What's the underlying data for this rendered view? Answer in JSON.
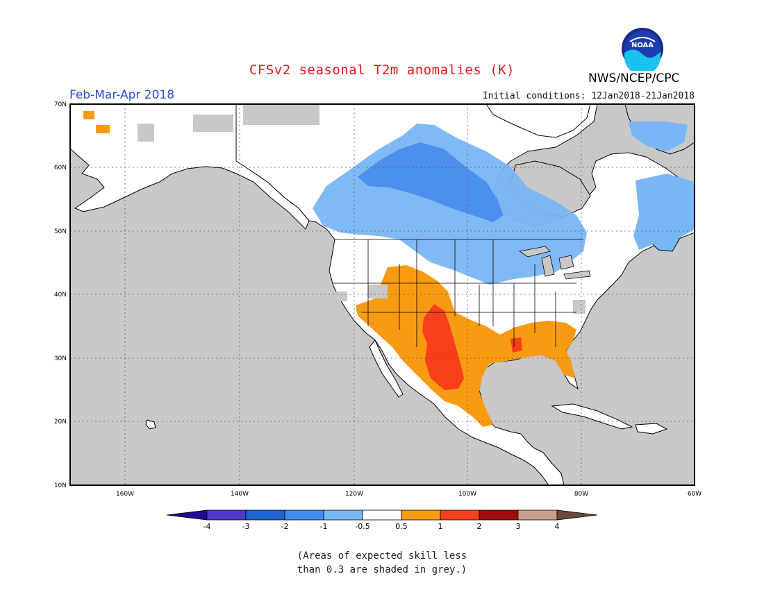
{
  "header": {
    "title": "CFSv2 seasonal T2m anomalies (K)",
    "period": "Feb-Mar-Apr 2018",
    "initial_conditions": "Initial conditions: 12Jan2018-21Jan2018",
    "agency": "NWS/NCEP/CPC",
    "logo_text": "NOAA"
  },
  "map": {
    "lon_range": [
      -172,
      -60
    ],
    "lat_range": [
      10,
      70
    ],
    "lat_labels": [
      "70N",
      "60N",
      "50N",
      "40N",
      "30N",
      "20N",
      "10N"
    ],
    "lon_labels": [
      "160W",
      "140W",
      "120W",
      "100W",
      "80W",
      "60W"
    ],
    "colors": {
      "ocean_grey": "#c8c8c8",
      "land_neutral": "#ffffff",
      "cold_light": "#79b6f5",
      "cold_mid": "#4a90ec",
      "warm": "#f99b12",
      "warm_strong": "#f6401a"
    },
    "regions": [
      {
        "level": "cold_light",
        "desc": "Canadian Prairies to Hudson Bay"
      },
      {
        "level": "cold_mid",
        "desc": "Central Canada"
      },
      {
        "level": "warm",
        "desc": "Southwest US, Southern Plains, Gulf Coast, Mexico"
      },
      {
        "level": "warm_strong",
        "desc": "New Mexico and West Texas, Northern Mexico"
      }
    ]
  },
  "legend": {
    "colors": [
      "#1f0a93",
      "#4c3bcc",
      "#1d63d2",
      "#3e8ff0",
      "#79b6f5",
      "#ffffff",
      "#f99b12",
      "#f6401a",
      "#a30c0c",
      "#c8a08c",
      "#6b4a3a"
    ],
    "labels": [
      "-4",
      "-3",
      "-2",
      "-1",
      "-0.5",
      "0.5",
      "1",
      "2",
      "3",
      "4"
    ]
  },
  "footnote": {
    "line1": "(Areas of expected skill less",
    "line2": "than 0.3 are shaded in grey.)"
  }
}
